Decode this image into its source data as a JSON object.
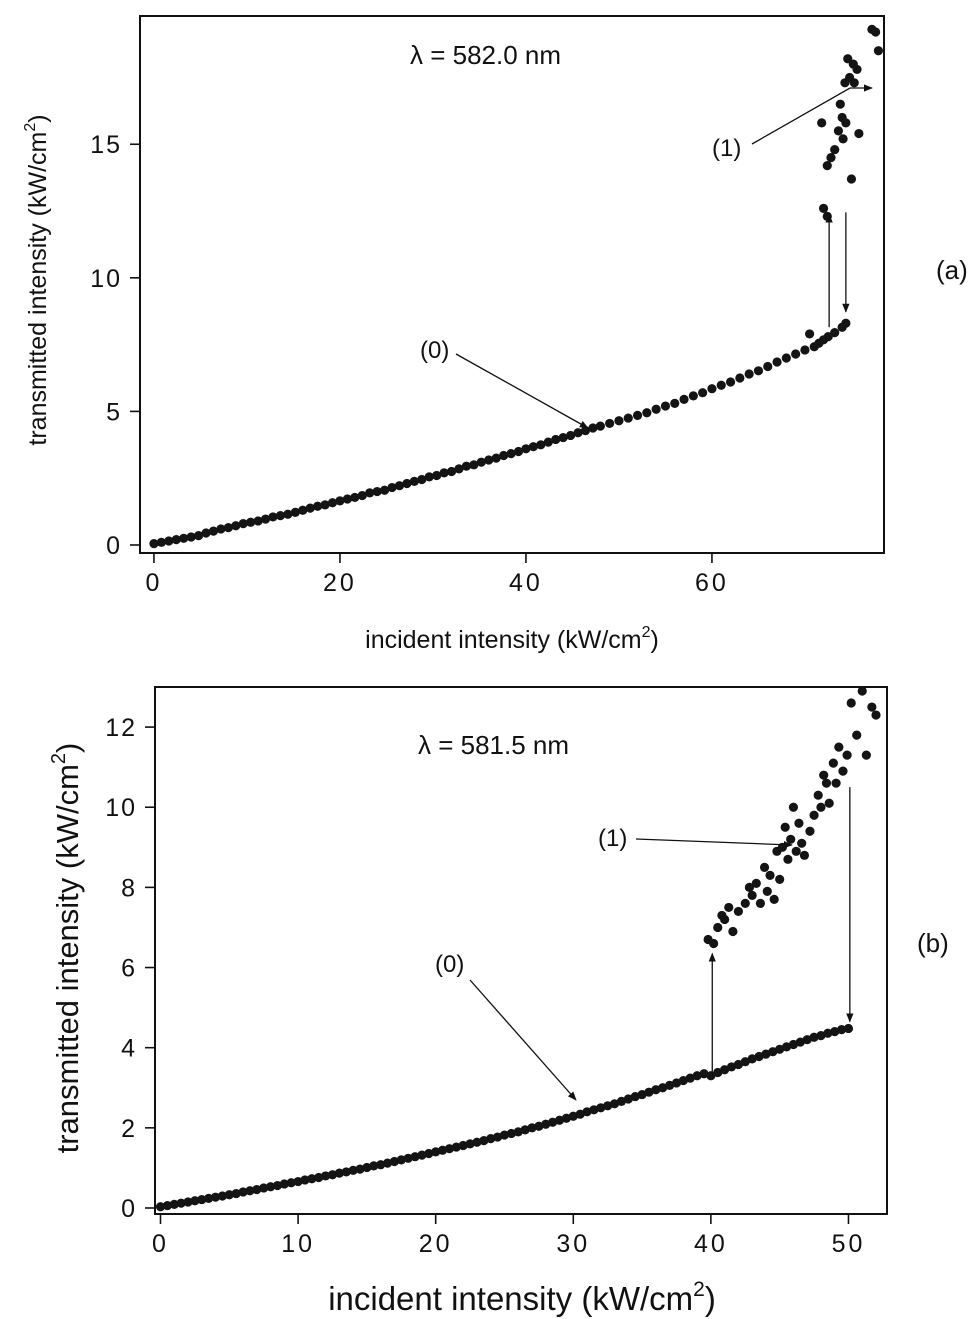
{
  "chart_data": [
    {
      "type": "scatter",
      "panel_label": "(a)",
      "annotation_text": "λ = 582.0 nm",
      "xlabel_base": "incident intensity (kW/cm",
      "xlabel_sup": "2",
      "xlabel_close": ")",
      "ylabel_base": "transmitted intensity (kW/cm",
      "ylabel_sup": "2",
      "ylabel_close": ")",
      "xlim": [
        -1.5,
        78.5
      ],
      "ylim": [
        -0.3,
        19.8
      ],
      "xticks": [
        0,
        20,
        40,
        60
      ],
      "xtick_labels": [
        "0",
        "20",
        "40",
        "60"
      ],
      "yticks": [
        0,
        5,
        10,
        15
      ],
      "ytick_labels": [
        "0",
        "5",
        "10",
        "15"
      ],
      "grid": false,
      "branch_labels": [
        "(0)",
        "(1)"
      ],
      "switch_up": [
        72.6,
        8.0,
        12.6
      ],
      "switch_down": [
        74.4,
        12.6,
        8.5
      ],
      "series": [
        {
          "points": [
            [
              0,
              0.05
            ],
            [
              0.8,
              0.1
            ],
            [
              1.6,
              0.15
            ],
            [
              2.4,
              0.2
            ],
            [
              3.2,
              0.25
            ],
            [
              4,
              0.3
            ],
            [
              4.8,
              0.35
            ],
            [
              5.6,
              0.45
            ],
            [
              6.4,
              0.52
            ],
            [
              7.2,
              0.6
            ],
            [
              8,
              0.65
            ],
            [
              8.8,
              0.72
            ],
            [
              9.6,
              0.8
            ],
            [
              10.4,
              0.85
            ],
            [
              11.2,
              0.9
            ],
            [
              12,
              0.97
            ],
            [
              12.8,
              1.05
            ],
            [
              13.6,
              1.1
            ],
            [
              14.4,
              1.15
            ],
            [
              15.2,
              1.22
            ],
            [
              16,
              1.3
            ],
            [
              16.8,
              1.38
            ],
            [
              17.6,
              1.45
            ],
            [
              18.4,
              1.5
            ],
            [
              19.2,
              1.58
            ],
            [
              20,
              1.65
            ],
            [
              20.8,
              1.72
            ],
            [
              21.6,
              1.78
            ],
            [
              22.4,
              1.85
            ],
            [
              23.2,
              1.95
            ],
            [
              24,
              2.0
            ],
            [
              24.8,
              2.05
            ],
            [
              25.6,
              2.15
            ],
            [
              26.4,
              2.22
            ],
            [
              27.2,
              2.3
            ],
            [
              28,
              2.38
            ],
            [
              28.8,
              2.45
            ],
            [
              29.6,
              2.55
            ],
            [
              30.4,
              2.6
            ],
            [
              31.2,
              2.7
            ],
            [
              32,
              2.75
            ],
            [
              32.8,
              2.85
            ],
            [
              33.6,
              2.95
            ],
            [
              34.4,
              3.0
            ],
            [
              35.2,
              3.1
            ],
            [
              36,
              3.18
            ],
            [
              36.8,
              3.25
            ],
            [
              37.6,
              3.35
            ],
            [
              38.4,
              3.42
            ],
            [
              39.2,
              3.5
            ],
            [
              40,
              3.6
            ],
            [
              40.8,
              3.68
            ],
            [
              41.6,
              3.75
            ],
            [
              42.4,
              3.85
            ],
            [
              43.2,
              3.95
            ],
            [
              44,
              4.02
            ],
            [
              44.8,
              4.1
            ],
            [
              45.6,
              4.2
            ],
            [
              46.4,
              4.28
            ],
            [
              47.2,
              4.38
            ],
            [
              48,
              4.45
            ],
            [
              49,
              4.55
            ],
            [
              50,
              4.65
            ],
            [
              51,
              4.75
            ],
            [
              52,
              4.85
            ],
            [
              53,
              4.95
            ],
            [
              54,
              5.08
            ],
            [
              55,
              5.2
            ],
            [
              56,
              5.3
            ],
            [
              57,
              5.45
            ],
            [
              58,
              5.58
            ],
            [
              59,
              5.7
            ],
            [
              60,
              5.85
            ],
            [
              61,
              5.98
            ],
            [
              62,
              6.1
            ],
            [
              63,
              6.25
            ],
            [
              64,
              6.4
            ],
            [
              65,
              6.52
            ],
            [
              66,
              6.68
            ],
            [
              67,
              6.85
            ],
            [
              68,
              7.0
            ],
            [
              69,
              7.15
            ],
            [
              70,
              7.3
            ],
            [
              70.5,
              7.9
            ],
            [
              71,
              7.42
            ],
            [
              71.5,
              7.55
            ],
            [
              72,
              7.68
            ],
            [
              72.5,
              7.8
            ],
            [
              73.2,
              7.95
            ],
            [
              74,
              8.15
            ],
            [
              74.4,
              8.3
            ]
          ]
        },
        {
          "points": [
            [
              72.0,
              12.6
            ],
            [
              72.4,
              12.3
            ],
            [
              71.8,
              15.8
            ],
            [
              72.4,
              14.2
            ],
            [
              72.8,
              14.5
            ],
            [
              73.2,
              14.8
            ],
            [
              73.6,
              15.5
            ],
            [
              73.8,
              16.5
            ],
            [
              74,
              16.0
            ],
            [
              74.1,
              15.2
            ],
            [
              74.3,
              17.3
            ],
            [
              74.4,
              15.8
            ],
            [
              74.6,
              18.2
            ],
            [
              74.8,
              17.5
            ],
            [
              75,
              13.7
            ],
            [
              75.2,
              18.0
            ],
            [
              75.3,
              17.3
            ],
            [
              75.6,
              17.8
            ],
            [
              75.8,
              15.4
            ],
            [
              77.2,
              19.3
            ],
            [
              77.6,
              19.2
            ],
            [
              77.9,
              18.5
            ]
          ]
        }
      ]
    },
    {
      "type": "scatter",
      "panel_label": "(b)",
      "annotation_text": "λ = 581.5 nm",
      "xlabel_base": "incident intensity (kW/cm",
      "xlabel_sup": "2",
      "xlabel_close": ")",
      "ylabel_base": "transmitted intensity (kW/cm",
      "ylabel_sup": "2",
      "ylabel_close": ")",
      "xlim": [
        -0.4,
        52.8
      ],
      "ylim": [
        -0.15,
        13.0
      ],
      "xticks": [
        0,
        10,
        20,
        30,
        40,
        50
      ],
      "xtick_labels": [
        "0",
        "10",
        "20",
        "30",
        "40",
        "50"
      ],
      "yticks": [
        0,
        2,
        4,
        6,
        8,
        10,
        12
      ],
      "ytick_labels": [
        "0",
        "2",
        "4",
        "6",
        "8",
        "10",
        "12"
      ],
      "grid": false,
      "branch_labels": [
        "(0)",
        "(1)"
      ],
      "switch_up": [
        40.1,
        3.2,
        6.5
      ],
      "switch_down": [
        50.1,
        10.6,
        4.5
      ],
      "series": [
        {
          "points": [
            [
              0,
              0.03
            ],
            [
              0.5,
              0.06
            ],
            [
              1,
              0.09
            ],
            [
              1.5,
              0.12
            ],
            [
              2,
              0.15
            ],
            [
              2.5,
              0.18
            ],
            [
              3,
              0.21
            ],
            [
              3.5,
              0.24
            ],
            [
              4,
              0.27
            ],
            [
              4.5,
              0.3
            ],
            [
              5,
              0.33
            ],
            [
              5.5,
              0.36
            ],
            [
              6,
              0.4
            ],
            [
              6.5,
              0.43
            ],
            [
              7,
              0.46
            ],
            [
              7.5,
              0.5
            ],
            [
              8,
              0.53
            ],
            [
              8.5,
              0.56
            ],
            [
              9,
              0.6
            ],
            [
              9.5,
              0.63
            ],
            [
              10,
              0.66
            ],
            [
              10.5,
              0.7
            ],
            [
              11,
              0.73
            ],
            [
              11.5,
              0.76
            ],
            [
              12,
              0.8
            ],
            [
              12.5,
              0.83
            ],
            [
              13,
              0.87
            ],
            [
              13.5,
              0.9
            ],
            [
              14,
              0.94
            ],
            [
              14.5,
              0.97
            ],
            [
              15,
              1.01
            ],
            [
              15.5,
              1.05
            ],
            [
              16,
              1.08
            ],
            [
              16.5,
              1.12
            ],
            [
              17,
              1.16
            ],
            [
              17.5,
              1.2
            ],
            [
              18,
              1.24
            ],
            [
              18.5,
              1.28
            ],
            [
              19,
              1.32
            ],
            [
              19.5,
              1.36
            ],
            [
              20,
              1.4
            ],
            [
              20.5,
              1.44
            ],
            [
              21,
              1.48
            ],
            [
              21.5,
              1.52
            ],
            [
              22,
              1.56
            ],
            [
              22.5,
              1.6
            ],
            [
              23,
              1.64
            ],
            [
              23.5,
              1.68
            ],
            [
              24,
              1.73
            ],
            [
              24.5,
              1.77
            ],
            [
              25,
              1.82
            ],
            [
              25.5,
              1.86
            ],
            [
              26,
              1.9
            ],
            [
              26.5,
              1.95
            ],
            [
              27,
              2.0
            ],
            [
              27.5,
              2.04
            ],
            [
              28,
              2.09
            ],
            [
              28.5,
              2.14
            ],
            [
              29,
              2.19
            ],
            [
              29.5,
              2.24
            ],
            [
              30,
              2.29
            ],
            [
              30.5,
              2.34
            ],
            [
              31,
              2.4
            ],
            [
              31.5,
              2.45
            ],
            [
              32,
              2.5
            ],
            [
              32.5,
              2.55
            ],
            [
              33,
              2.6
            ],
            [
              33.5,
              2.66
            ],
            [
              34,
              2.72
            ],
            [
              34.5,
              2.78
            ],
            [
              35,
              2.83
            ],
            [
              35.5,
              2.89
            ],
            [
              36,
              2.95
            ],
            [
              36.5,
              3.0
            ],
            [
              37,
              3.06
            ],
            [
              37.5,
              3.12
            ],
            [
              38,
              3.18
            ],
            [
              38.5,
              3.24
            ],
            [
              39,
              3.3
            ],
            [
              39.5,
              3.35
            ],
            [
              40,
              3.3
            ],
            [
              40.5,
              3.38
            ],
            [
              41,
              3.45
            ],
            [
              41.5,
              3.52
            ],
            [
              42,
              3.58
            ],
            [
              42.5,
              3.65
            ],
            [
              43,
              3.72
            ],
            [
              43.5,
              3.78
            ],
            [
              44,
              3.84
            ],
            [
              44.5,
              3.9
            ],
            [
              45,
              3.96
            ],
            [
              45.5,
              4.02
            ],
            [
              46,
              4.08
            ],
            [
              46.5,
              4.14
            ],
            [
              47,
              4.2
            ],
            [
              47.5,
              4.26
            ],
            [
              48,
              4.3
            ],
            [
              48.5,
              4.36
            ],
            [
              49,
              4.4
            ],
            [
              49.5,
              4.45
            ],
            [
              50,
              4.48
            ]
          ]
        },
        {
          "points": [
            [
              39.8,
              6.7
            ],
            [
              40.2,
              6.6
            ],
            [
              40.5,
              7.0
            ],
            [
              40.8,
              7.3
            ],
            [
              41,
              7.2
            ],
            [
              41.3,
              7.5
            ],
            [
              41.6,
              6.9
            ],
            [
              42,
              7.4
            ],
            [
              42.5,
              7.6
            ],
            [
              42.8,
              8.0
            ],
            [
              43,
              7.8
            ],
            [
              43.3,
              8.1
            ],
            [
              43.6,
              7.6
            ],
            [
              43.9,
              8.5
            ],
            [
              44.1,
              7.9
            ],
            [
              44.3,
              8.3
            ],
            [
              44.6,
              7.7
            ],
            [
              44.8,
              8.9
            ],
            [
              45,
              8.2
            ],
            [
              45.2,
              9.0
            ],
            [
              45.4,
              9.5
            ],
            [
              45.6,
              8.7
            ],
            [
              45.8,
              9.2
            ],
            [
              46,
              10.0
            ],
            [
              46.2,
              8.9
            ],
            [
              46.4,
              9.6
            ],
            [
              46.6,
              9.1
            ],
            [
              46.8,
              8.8
            ],
            [
              47.2,
              9.4
            ],
            [
              47.5,
              9.8
            ],
            [
              47.8,
              10.3
            ],
            [
              48,
              10.0
            ],
            [
              48.2,
              10.8
            ],
            [
              48.4,
              10.6
            ],
            [
              48.6,
              10.1
            ],
            [
              48.9,
              11.1
            ],
            [
              49.1,
              10.6
            ],
            [
              49.3,
              11.5
            ],
            [
              49.6,
              10.9
            ],
            [
              49.9,
              11.3
            ],
            [
              50.2,
              12.6
            ],
            [
              50.6,
              11.8
            ],
            [
              51,
              12.9
            ],
            [
              51.3,
              11.3
            ],
            [
              51.7,
              12.5
            ],
            [
              52,
              12.3
            ]
          ]
        }
      ]
    }
  ]
}
